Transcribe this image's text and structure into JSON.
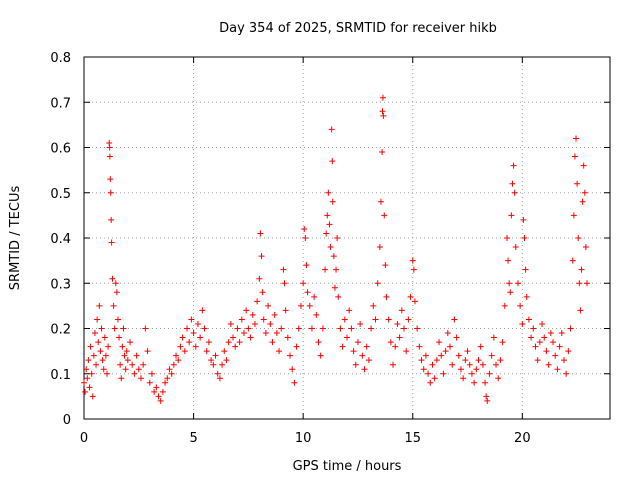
{
  "chart_data": {
    "type": "scatter",
    "title": "Day 354 of 2025, SRMTID for receiver hikb",
    "xlabel": "GPS time / hours",
    "ylabel": "SRMTID / TECUs",
    "xlim": [
      0,
      24
    ],
    "ylim": [
      0,
      0.8
    ],
    "xticks": [
      0,
      5,
      10,
      15,
      20
    ],
    "xtick_labels": [
      "0",
      "5",
      "10",
      "15",
      "20"
    ],
    "yticks": [
      0,
      0.1,
      0.2,
      0.3,
      0.4,
      0.5,
      0.6,
      0.7,
      0.8
    ],
    "ytick_labels": [
      "0",
      "0.1",
      "0.2",
      "0.3",
      "0.4",
      "0.5",
      "0.6",
      "0.7",
      "0.8"
    ],
    "grid": true,
    "marker": "+",
    "color": "#ff0000",
    "series": [
      {
        "name": "SRMTID",
        "points": [
          [
            0.0,
            0.08
          ],
          [
            0.05,
            0.06
          ],
          [
            0.1,
            0.11
          ],
          [
            0.15,
            0.09
          ],
          [
            0.2,
            0.13
          ],
          [
            0.25,
            0.07
          ],
          [
            0.3,
            0.16
          ],
          [
            0.35,
            0.1
          ],
          [
            0.4,
            0.05
          ],
          [
            0.45,
            0.14
          ],
          [
            0.5,
            0.19
          ],
          [
            0.55,
            0.12
          ],
          [
            0.6,
            0.22
          ],
          [
            0.65,
            0.17
          ],
          [
            0.7,
            0.25
          ],
          [
            0.75,
            0.15
          ],
          [
            0.8,
            0.2
          ],
          [
            0.85,
            0.13
          ],
          [
            0.9,
            0.11
          ],
          [
            0.95,
            0.18
          ],
          [
            1.0,
            0.14
          ],
          [
            1.05,
            0.1
          ],
          [
            1.1,
            0.16
          ],
          [
            1.15,
            0.61
          ],
          [
            1.17,
            0.6
          ],
          [
            1.18,
            0.58
          ],
          [
            1.2,
            0.53
          ],
          [
            1.22,
            0.5
          ],
          [
            1.24,
            0.44
          ],
          [
            1.26,
            0.39
          ],
          [
            1.3,
            0.31
          ],
          [
            1.35,
            0.25
          ],
          [
            1.4,
            0.2
          ],
          [
            1.45,
            0.3
          ],
          [
            1.5,
            0.28
          ],
          [
            1.55,
            0.22
          ],
          [
            1.6,
            0.18
          ],
          [
            1.65,
            0.12
          ],
          [
            1.7,
            0.09
          ],
          [
            1.75,
            0.16
          ],
          [
            1.8,
            0.2
          ],
          [
            1.85,
            0.14
          ],
          [
            1.9,
            0.11
          ],
          [
            1.95,
            0.15
          ],
          [
            2.0,
            0.13
          ],
          [
            2.1,
            0.17
          ],
          [
            2.2,
            0.12
          ],
          [
            2.3,
            0.1
          ],
          [
            2.4,
            0.14
          ],
          [
            2.5,
            0.11
          ],
          [
            2.6,
            0.09
          ],
          [
            2.7,
            0.12
          ],
          [
            2.8,
            0.2
          ],
          [
            2.9,
            0.15
          ],
          [
            3.0,
            0.08
          ],
          [
            3.1,
            0.1
          ],
          [
            3.2,
            0.06
          ],
          [
            3.3,
            0.07
          ],
          [
            3.4,
            0.05
          ],
          [
            3.5,
            0.04
          ],
          [
            3.6,
            0.06
          ],
          [
            3.7,
            0.08
          ],
          [
            3.8,
            0.09
          ],
          [
            3.9,
            0.11
          ],
          [
            4.0,
            0.1
          ],
          [
            4.1,
            0.12
          ],
          [
            4.2,
            0.14
          ],
          [
            4.3,
            0.13
          ],
          [
            4.4,
            0.16
          ],
          [
            4.5,
            0.18
          ],
          [
            4.6,
            0.15
          ],
          [
            4.7,
            0.2
          ],
          [
            4.8,
            0.17
          ],
          [
            4.9,
            0.22
          ],
          [
            5.0,
            0.19
          ],
          [
            5.1,
            0.16
          ],
          [
            5.2,
            0.21
          ],
          [
            5.3,
            0.18
          ],
          [
            5.4,
            0.24
          ],
          [
            5.5,
            0.2
          ],
          [
            5.6,
            0.15
          ],
          [
            5.7,
            0.17
          ],
          [
            5.8,
            0.13
          ],
          [
            5.9,
            0.12
          ],
          [
            6.0,
            0.14
          ],
          [
            6.1,
            0.1
          ],
          [
            6.2,
            0.09
          ],
          [
            6.3,
            0.12
          ],
          [
            6.4,
            0.15
          ],
          [
            6.5,
            0.13
          ],
          [
            6.6,
            0.17
          ],
          [
            6.7,
            0.21
          ],
          [
            6.8,
            0.18
          ],
          [
            6.9,
            0.16
          ],
          [
            7.0,
            0.2
          ],
          [
            7.1,
            0.17
          ],
          [
            7.2,
            0.22
          ],
          [
            7.3,
            0.19
          ],
          [
            7.4,
            0.24
          ],
          [
            7.5,
            0.2
          ],
          [
            7.6,
            0.18
          ],
          [
            7.7,
            0.23
          ],
          [
            7.8,
            0.21
          ],
          [
            7.9,
            0.26
          ],
          [
            8.0,
            0.31
          ],
          [
            8.05,
            0.41
          ],
          [
            8.1,
            0.36
          ],
          [
            8.15,
            0.28
          ],
          [
            8.2,
            0.22
          ],
          [
            8.3,
            0.19
          ],
          [
            8.4,
            0.25
          ],
          [
            8.5,
            0.21
          ],
          [
            8.6,
            0.17
          ],
          [
            8.7,
            0.23
          ],
          [
            8.8,
            0.19
          ],
          [
            8.9,
            0.15
          ],
          [
            9.0,
            0.2
          ],
          [
            9.1,
            0.33
          ],
          [
            9.15,
            0.3
          ],
          [
            9.2,
            0.24
          ],
          [
            9.3,
            0.18
          ],
          [
            9.4,
            0.14
          ],
          [
            9.5,
            0.11
          ],
          [
            9.6,
            0.08
          ],
          [
            9.7,
            0.16
          ],
          [
            9.8,
            0.2
          ],
          [
            9.9,
            0.25
          ],
          [
            10.0,
            0.3
          ],
          [
            10.05,
            0.42
          ],
          [
            10.1,
            0.4
          ],
          [
            10.15,
            0.34
          ],
          [
            10.2,
            0.28
          ],
          [
            10.3,
            0.25
          ],
          [
            10.4,
            0.2
          ],
          [
            10.5,
            0.27
          ],
          [
            10.6,
            0.23
          ],
          [
            10.7,
            0.17
          ],
          [
            10.8,
            0.14
          ],
          [
            10.9,
            0.2
          ],
          [
            11.0,
            0.33
          ],
          [
            11.05,
            0.41
          ],
          [
            11.1,
            0.45
          ],
          [
            11.15,
            0.5
          ],
          [
            11.2,
            0.43
          ],
          [
            11.25,
            0.38
          ],
          [
            11.3,
            0.64
          ],
          [
            11.33,
            0.57
          ],
          [
            11.35,
            0.48
          ],
          [
            11.4,
            0.36
          ],
          [
            11.45,
            0.29
          ],
          [
            11.5,
            0.33
          ],
          [
            11.55,
            0.4
          ],
          [
            11.6,
            0.27
          ],
          [
            11.7,
            0.2
          ],
          [
            11.8,
            0.16
          ],
          [
            11.9,
            0.22
          ],
          [
            12.0,
            0.18
          ],
          [
            12.1,
            0.24
          ],
          [
            12.2,
            0.2
          ],
          [
            12.3,
            0.15
          ],
          [
            12.4,
            0.12
          ],
          [
            12.5,
            0.17
          ],
          [
            12.6,
            0.21
          ],
          [
            12.7,
            0.14
          ],
          [
            12.8,
            0.11
          ],
          [
            12.9,
            0.16
          ],
          [
            13.0,
            0.13
          ],
          [
            13.1,
            0.2
          ],
          [
            13.2,
            0.25
          ],
          [
            13.3,
            0.22
          ],
          [
            13.4,
            0.3
          ],
          [
            13.5,
            0.38
          ],
          [
            13.55,
            0.48
          ],
          [
            13.6,
            0.59
          ],
          [
            13.62,
            0.68
          ],
          [
            13.64,
            0.71
          ],
          [
            13.66,
            0.67
          ],
          [
            13.7,
            0.45
          ],
          [
            13.75,
            0.34
          ],
          [
            13.8,
            0.27
          ],
          [
            13.9,
            0.22
          ],
          [
            14.0,
            0.17
          ],
          [
            14.1,
            0.12
          ],
          [
            14.2,
            0.16
          ],
          [
            14.3,
            0.21
          ],
          [
            14.4,
            0.18
          ],
          [
            14.5,
            0.24
          ],
          [
            14.6,
            0.2
          ],
          [
            14.7,
            0.15
          ],
          [
            14.8,
            0.22
          ],
          [
            14.9,
            0.27
          ],
          [
            15.0,
            0.35
          ],
          [
            15.05,
            0.33
          ],
          [
            15.1,
            0.26
          ],
          [
            15.2,
            0.2
          ],
          [
            15.3,
            0.16
          ],
          [
            15.4,
            0.13
          ],
          [
            15.5,
            0.11
          ],
          [
            15.6,
            0.14
          ],
          [
            15.7,
            0.1
          ],
          [
            15.8,
            0.08
          ],
          [
            15.9,
            0.12
          ],
          [
            16.0,
            0.09
          ],
          [
            16.1,
            0.13
          ],
          [
            16.2,
            0.17
          ],
          [
            16.3,
            0.14
          ],
          [
            16.4,
            0.1
          ],
          [
            16.5,
            0.15
          ],
          [
            16.6,
            0.19
          ],
          [
            16.7,
            0.16
          ],
          [
            16.8,
            0.12
          ],
          [
            16.9,
            0.22
          ],
          [
            17.0,
            0.18
          ],
          [
            17.1,
            0.14
          ],
          [
            17.2,
            0.11
          ],
          [
            17.3,
            0.09
          ],
          [
            17.4,
            0.13
          ],
          [
            17.5,
            0.15
          ],
          [
            17.6,
            0.12
          ],
          [
            17.7,
            0.1
          ],
          [
            17.8,
            0.08
          ],
          [
            17.9,
            0.11
          ],
          [
            18.0,
            0.13
          ],
          [
            18.1,
            0.16
          ],
          [
            18.2,
            0.12
          ],
          [
            18.3,
            0.08
          ],
          [
            18.35,
            0.05
          ],
          [
            18.4,
            0.04
          ],
          [
            18.5,
            0.1
          ],
          [
            18.6,
            0.14
          ],
          [
            18.7,
            0.18
          ],
          [
            18.8,
            0.12
          ],
          [
            18.9,
            0.09
          ],
          [
            19.0,
            0.13
          ],
          [
            19.1,
            0.17
          ],
          [
            19.2,
            0.25
          ],
          [
            19.3,
            0.4
          ],
          [
            19.35,
            0.35
          ],
          [
            19.4,
            0.3
          ],
          [
            19.45,
            0.28
          ],
          [
            19.5,
            0.45
          ],
          [
            19.55,
            0.52
          ],
          [
            19.6,
            0.56
          ],
          [
            19.65,
            0.5
          ],
          [
            19.7,
            0.38
          ],
          [
            19.8,
            0.3
          ],
          [
            19.9,
            0.25
          ],
          [
            20.0,
            0.21
          ],
          [
            20.05,
            0.44
          ],
          [
            20.1,
            0.4
          ],
          [
            20.15,
            0.33
          ],
          [
            20.2,
            0.27
          ],
          [
            20.3,
            0.22
          ],
          [
            20.4,
            0.18
          ],
          [
            20.5,
            0.2
          ],
          [
            20.6,
            0.16
          ],
          [
            20.7,
            0.13
          ],
          [
            20.8,
            0.17
          ],
          [
            20.9,
            0.21
          ],
          [
            21.0,
            0.18
          ],
          [
            21.1,
            0.15
          ],
          [
            21.2,
            0.12
          ],
          [
            21.3,
            0.19
          ],
          [
            21.4,
            0.17
          ],
          [
            21.5,
            0.14
          ],
          [
            21.6,
            0.11
          ],
          [
            21.7,
            0.16
          ],
          [
            21.8,
            0.19
          ],
          [
            21.9,
            0.13
          ],
          [
            22.0,
            0.1
          ],
          [
            22.1,
            0.15
          ],
          [
            22.2,
            0.2
          ],
          [
            22.3,
            0.35
          ],
          [
            22.35,
            0.45
          ],
          [
            22.4,
            0.58
          ],
          [
            22.45,
            0.62
          ],
          [
            22.5,
            0.52
          ],
          [
            22.55,
            0.4
          ],
          [
            22.6,
            0.3
          ],
          [
            22.65,
            0.24
          ],
          [
            22.7,
            0.33
          ],
          [
            22.75,
            0.48
          ],
          [
            22.8,
            0.56
          ],
          [
            22.85,
            0.5
          ],
          [
            22.9,
            0.38
          ],
          [
            22.95,
            0.3
          ]
        ]
      }
    ]
  }
}
